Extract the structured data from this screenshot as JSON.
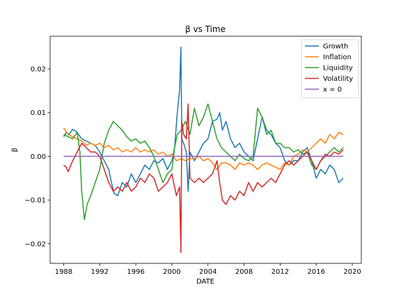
{
  "chart_data": {
    "type": "line",
    "title": "β vs Time",
    "xlabel": "DATE",
    "ylabel": "β",
    "xlim": [
      1986.5,
      2021.0
    ],
    "ylim": [
      -0.0245,
      0.0275
    ],
    "xticks": [
      1988,
      1992,
      1996,
      2000,
      2004,
      2008,
      2012,
      2016,
      2020
    ],
    "xtick_labels": [
      "1988",
      "1992",
      "1996",
      "2000",
      "2004",
      "2008",
      "2012",
      "2016",
      "2020"
    ],
    "yticks": [
      -0.02,
      -0.01,
      0.0,
      0.01,
      0.02
    ],
    "ytick_labels": [
      "−0.02",
      "−0.01",
      "0.00",
      "0.01",
      "0.02"
    ],
    "legend_position": "top-right",
    "grid": false,
    "series": [
      {
        "name": "Growth",
        "color": "#1f77b4",
        "points": [
          [
            1988.0,
            0.0045
          ],
          [
            1988.3,
            0.0055
          ],
          [
            1988.6,
            0.005
          ],
          [
            1989.0,
            0.0062
          ],
          [
            1989.5,
            0.0055
          ],
          [
            1990.0,
            0.004
          ],
          [
            1990.5,
            0.0035
          ],
          [
            1991.0,
            0.003
          ],
          [
            1991.5,
            0.0025
          ],
          [
            1992.0,
            0.001
          ],
          [
            1992.5,
            -0.001
          ],
          [
            1993.0,
            -0.003
          ],
          [
            1993.3,
            -0.006
          ],
          [
            1993.6,
            -0.0085
          ],
          [
            1994.0,
            -0.009
          ],
          [
            1994.5,
            -0.006
          ],
          [
            1995.0,
            -0.007
          ],
          [
            1995.5,
            -0.004
          ],
          [
            1996.0,
            -0.006
          ],
          [
            1996.5,
            -0.004
          ],
          [
            1997.0,
            -0.002
          ],
          [
            1997.5,
            -0.003
          ],
          [
            1998.0,
            -0.001
          ],
          [
            1998.5,
            -0.0015
          ],
          [
            1999.0,
            -0.0005
          ],
          [
            1999.5,
            -0.003
          ],
          [
            2000.0,
            -0.001
          ],
          [
            2000.3,
            0.002
          ],
          [
            2000.6,
            0.01
          ],
          [
            2000.85,
            0.015
          ],
          [
            2001.0,
            0.025
          ],
          [
            2001.1,
            0.004
          ],
          [
            2001.3,
            0.003
          ],
          [
            2001.6,
            0.001
          ],
          [
            2001.8,
            -0.008
          ],
          [
            2002.0,
            0.001
          ],
          [
            2002.5,
            -0.001
          ],
          [
            2003.0,
            0.001
          ],
          [
            2003.5,
            0.003
          ],
          [
            2004.0,
            0.004
          ],
          [
            2004.5,
            0.008
          ],
          [
            2005.0,
            0.0085
          ],
          [
            2005.3,
            0.01
          ],
          [
            2005.6,
            0.006
          ],
          [
            2006.0,
            0.008
          ],
          [
            2006.5,
            0.004
          ],
          [
            2007.0,
            0.002
          ],
          [
            2007.5,
            0.003
          ],
          [
            2008.0,
            0.001
          ],
          [
            2008.5,
            0.0
          ],
          [
            2009.0,
            -0.001
          ],
          [
            2009.5,
            0.004
          ],
          [
            2010.0,
            0.009
          ],
          [
            2010.5,
            0.006
          ],
          [
            2011.0,
            0.005
          ],
          [
            2011.5,
            0.003
          ],
          [
            2012.0,
            0.002
          ],
          [
            2012.5,
            -0.001
          ],
          [
            2013.0,
            -0.002
          ],
          [
            2013.5,
            -0.001
          ],
          [
            2014.0,
            -0.001
          ],
          [
            2014.5,
            0.001
          ],
          [
            2015.0,
            0.002
          ],
          [
            2015.5,
            -0.001
          ],
          [
            2016.0,
            -0.005
          ],
          [
            2016.5,
            -0.003
          ],
          [
            2017.0,
            -0.004
          ],
          [
            2017.5,
            -0.002
          ],
          [
            2018.0,
            -0.003
          ],
          [
            2018.5,
            -0.006
          ],
          [
            2019.0,
            -0.005
          ]
        ]
      },
      {
        "name": "Inflation",
        "color": "#ff7f0e",
        "points": [
          [
            1988.0,
            0.0065
          ],
          [
            1988.5,
            0.005
          ],
          [
            1989.0,
            0.0045
          ],
          [
            1989.5,
            0.004
          ],
          [
            1990.0,
            0.0035
          ],
          [
            1990.5,
            0.0025
          ],
          [
            1991.0,
            0.003
          ],
          [
            1991.5,
            0.0025
          ],
          [
            1992.0,
            0.003
          ],
          [
            1992.5,
            0.002
          ],
          [
            1993.0,
            0.0025
          ],
          [
            1993.5,
            0.0015
          ],
          [
            1994.0,
            0.002
          ],
          [
            1994.5,
            0.001
          ],
          [
            1995.0,
            0.0015
          ],
          [
            1995.5,
            0.001
          ],
          [
            1996.0,
            0.002
          ],
          [
            1996.5,
            0.001
          ],
          [
            1997.0,
            0.0015
          ],
          [
            1997.5,
            0.001
          ],
          [
            1998.0,
            0.0015
          ],
          [
            1998.5,
            0.0005
          ],
          [
            1999.0,
            0.001
          ],
          [
            1999.5,
            0.0
          ],
          [
            2000.0,
            0.0005
          ],
          [
            2000.5,
            -0.001
          ],
          [
            2001.0,
            -0.0005
          ],
          [
            2001.5,
            -0.001
          ],
          [
            2002.0,
            -0.0005
          ],
          [
            2002.5,
            -0.0005
          ],
          [
            2003.0,
            0.0
          ],
          [
            2003.5,
            -0.001
          ],
          [
            2004.0,
            -0.0005
          ],
          [
            2004.5,
            -0.0015
          ],
          [
            2005.0,
            -0.003
          ],
          [
            2005.5,
            -0.0015
          ],
          [
            2006.0,
            -0.0015
          ],
          [
            2006.5,
            -0.002
          ],
          [
            2007.0,
            -0.003
          ],
          [
            2007.5,
            -0.0015
          ],
          [
            2008.0,
            -0.002
          ],
          [
            2008.5,
            -0.0015
          ],
          [
            2009.0,
            -0.002
          ],
          [
            2009.5,
            -0.003
          ],
          [
            2010.0,
            -0.002
          ],
          [
            2010.5,
            -0.0015
          ],
          [
            2011.0,
            -0.002
          ],
          [
            2011.5,
            -0.0025
          ],
          [
            2012.0,
            -0.003
          ],
          [
            2012.5,
            -0.0015
          ],
          [
            2013.0,
            -0.002
          ],
          [
            2013.5,
            0.0
          ],
          [
            2014.0,
            0.0005
          ],
          [
            2014.5,
            0.0015
          ],
          [
            2015.0,
            0.001
          ],
          [
            2015.5,
            0.002
          ],
          [
            2016.0,
            0.003
          ],
          [
            2016.5,
            0.004
          ],
          [
            2017.0,
            0.003
          ],
          [
            2017.5,
            0.005
          ],
          [
            2018.0,
            0.004
          ],
          [
            2018.5,
            0.0055
          ],
          [
            2019.0,
            0.005
          ]
        ]
      },
      {
        "name": "Liquidity",
        "color": "#2ca02c",
        "points": [
          [
            1988.0,
            0.005
          ],
          [
            1988.5,
            0.0045
          ],
          [
            1989.0,
            0.004
          ],
          [
            1989.5,
            0.0055
          ],
          [
            1989.8,
            0.001
          ],
          [
            1990.0,
            -0.008
          ],
          [
            1990.3,
            -0.0145
          ],
          [
            1990.6,
            -0.011
          ],
          [
            1991.0,
            -0.009
          ],
          [
            1991.5,
            -0.006
          ],
          [
            1992.0,
            -0.003
          ],
          [
            1992.5,
            0.003
          ],
          [
            1993.0,
            0.006
          ],
          [
            1993.5,
            0.008
          ],
          [
            1994.0,
            0.007
          ],
          [
            1994.5,
            0.006
          ],
          [
            1995.0,
            0.0045
          ],
          [
            1995.5,
            0.0035
          ],
          [
            1996.0,
            0.004
          ],
          [
            1996.5,
            0.003
          ],
          [
            1997.0,
            0.0035
          ],
          [
            1997.5,
            0.002
          ],
          [
            1998.0,
            0.0
          ],
          [
            1998.5,
            -0.003
          ],
          [
            1999.0,
            -0.006
          ],
          [
            1999.5,
            -0.004
          ],
          [
            2000.0,
            -0.003
          ],
          [
            2000.3,
            0.002
          ],
          [
            2000.6,
            0.005
          ],
          [
            2001.0,
            0.006
          ],
          [
            2001.5,
            0.008
          ],
          [
            2002.0,
            0.005
          ],
          [
            2002.5,
            0.011
          ],
          [
            2003.0,
            0.007
          ],
          [
            2003.5,
            0.009
          ],
          [
            2004.0,
            0.012
          ],
          [
            2004.5,
            0.008
          ],
          [
            2005.0,
            0.004
          ],
          [
            2005.5,
            0.002
          ],
          [
            2006.0,
            0.001
          ],
          [
            2006.5,
            0.0
          ],
          [
            2007.0,
            -0.001
          ],
          [
            2007.5,
            0.0005
          ],
          [
            2008.0,
            -0.0005
          ],
          [
            2008.5,
            -0.001
          ],
          [
            2009.0,
            0.0
          ],
          [
            2009.5,
            0.011
          ],
          [
            2010.0,
            0.009
          ],
          [
            2010.5,
            0.005
          ],
          [
            2011.0,
            0.006
          ],
          [
            2011.5,
            0.003
          ],
          [
            2012.0,
            0.003
          ],
          [
            2012.5,
            0.002
          ],
          [
            2013.0,
            0.002
          ],
          [
            2013.5,
            0.001
          ],
          [
            2014.0,
            0.0015
          ],
          [
            2014.5,
            0.0005
          ],
          [
            2015.0,
            0.001
          ],
          [
            2015.5,
            -0.002
          ],
          [
            2016.0,
            -0.003
          ],
          [
            2016.5,
            -0.001
          ],
          [
            2017.0,
            0.0
          ],
          [
            2017.5,
            0.001
          ],
          [
            2018.0,
            0.002
          ],
          [
            2018.5,
            0.001
          ],
          [
            2019.0,
            0.002
          ]
        ]
      },
      {
        "name": "Volatility",
        "color": "#d62728",
        "points": [
          [
            1988.0,
            -0.002
          ],
          [
            1988.3,
            -0.0025
          ],
          [
            1988.5,
            -0.0035
          ],
          [
            1989.0,
            -0.001
          ],
          [
            1989.5,
            0.001
          ],
          [
            1990.0,
            0.003
          ],
          [
            1990.5,
            0.002
          ],
          [
            1991.0,
            0.001
          ],
          [
            1991.5,
            0.001
          ],
          [
            1992.0,
            0.0
          ],
          [
            1992.5,
            -0.003
          ],
          [
            1993.0,
            -0.006
          ],
          [
            1993.5,
            -0.008
          ],
          [
            1994.0,
            -0.007
          ],
          [
            1994.5,
            -0.008
          ],
          [
            1995.0,
            -0.006
          ],
          [
            1995.5,
            -0.008
          ],
          [
            1996.0,
            -0.007
          ],
          [
            1996.5,
            -0.005
          ],
          [
            1997.0,
            -0.006
          ],
          [
            1997.5,
            -0.004
          ],
          [
            1998.0,
            -0.005
          ],
          [
            1998.5,
            -0.008
          ],
          [
            1999.0,
            -0.007
          ],
          [
            1999.5,
            -0.006
          ],
          [
            2000.0,
            -0.004
          ],
          [
            2000.5,
            -0.009
          ],
          [
            2000.85,
            -0.007
          ],
          [
            2001.0,
            -0.022
          ],
          [
            2001.1,
            0.008
          ],
          [
            2001.3,
            0.005
          ],
          [
            2001.6,
            0.004
          ],
          [
            2001.8,
            0.012
          ],
          [
            2002.0,
            -0.005
          ],
          [
            2002.5,
            -0.006
          ],
          [
            2003.0,
            -0.005
          ],
          [
            2003.5,
            -0.006
          ],
          [
            2004.0,
            -0.005
          ],
          [
            2004.5,
            -0.004
          ],
          [
            2005.0,
            -0.001
          ],
          [
            2005.3,
            -0.006
          ],
          [
            2005.6,
            -0.01
          ],
          [
            2006.0,
            -0.011
          ],
          [
            2006.5,
            -0.009
          ],
          [
            2007.0,
            -0.01
          ],
          [
            2007.5,
            -0.008
          ],
          [
            2008.0,
            -0.009
          ],
          [
            2008.5,
            -0.006
          ],
          [
            2009.0,
            -0.008
          ],
          [
            2009.5,
            -0.006
          ],
          [
            2010.0,
            -0.007
          ],
          [
            2010.5,
            -0.006
          ],
          [
            2011.0,
            -0.005
          ],
          [
            2011.5,
            -0.006
          ],
          [
            2012.0,
            -0.004
          ],
          [
            2012.5,
            -0.002
          ],
          [
            2013.0,
            -0.001
          ],
          [
            2013.5,
            -0.002
          ],
          [
            2014.0,
            -0.001
          ],
          [
            2014.5,
            0.0
          ],
          [
            2015.0,
            0.001
          ],
          [
            2015.5,
            -0.001
          ],
          [
            2016.0,
            -0.003
          ],
          [
            2016.5,
            -0.001
          ],
          [
            2017.0,
            0.0005
          ],
          [
            2017.5,
            0.0
          ],
          [
            2018.0,
            0.001
          ],
          [
            2018.5,
            0.0005
          ],
          [
            2019.0,
            0.0015
          ]
        ]
      },
      {
        "name": "x = 0",
        "color": "#9467bd",
        "points": [
          [
            1988.0,
            0.0
          ],
          [
            2019.0,
            0.0
          ]
        ]
      }
    ]
  }
}
